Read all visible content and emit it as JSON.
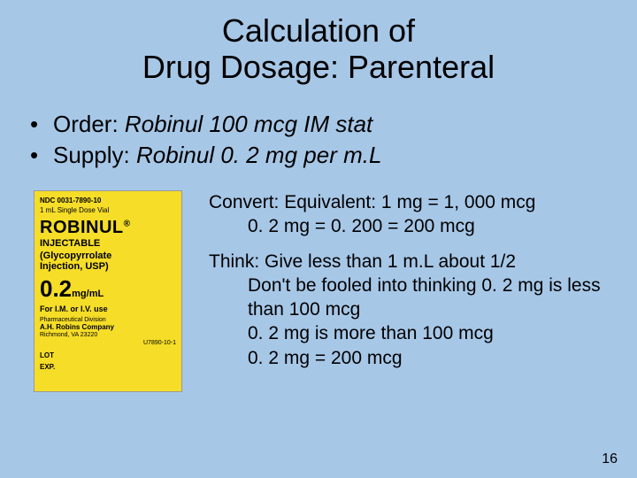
{
  "title_line1": "Calculation of",
  "title_line2": "Drug Dosage: Parenteral",
  "bullet1_label": "Order: ",
  "bullet1_value": "Robinul 100 mcg IM stat",
  "bullet2_label": "Supply:  ",
  "bullet2_value": "Robinul 0. 2 mg per m.L",
  "label": {
    "ndc": "NDC 0031-7890-10",
    "vial": "1 mL Single Dose Vial",
    "brand": "ROBINUL",
    "reg": "®",
    "inj": "INJECTABLE",
    "generic1": "(Glycopyrrolate",
    "generic2": "Injection, USP)",
    "dose_num": "0.2",
    "dose_unit": "mg/mL",
    "use": "For I.M. or I.V. use",
    "pharm": "Pharmaceutical Division",
    "company": "A.H. Robins Company",
    "city": "Richmond, VA 23220",
    "code": "U7890-10-1",
    "lot": "LOT",
    "exp": "EXP."
  },
  "convert_head": "Convert: Equivalent:  1 mg = 1, 000 mcg",
  "convert_line2": "0. 2 mg = 0. 200 = 200 mcg",
  "think_head": "Think: Give less than 1 m.L about 1/2",
  "think_line2": "Don't be fooled into thinking 0. 2 mg is less than 100 mcg",
  "think_line3": "0. 2 mg is more than 100 mcg",
  "think_line4": "0. 2 mg = 200 mcg",
  "page_number": "16",
  "colors": {
    "background": "#a7c7e7",
    "label_bg": "#f5dd28",
    "text": "#000000"
  }
}
